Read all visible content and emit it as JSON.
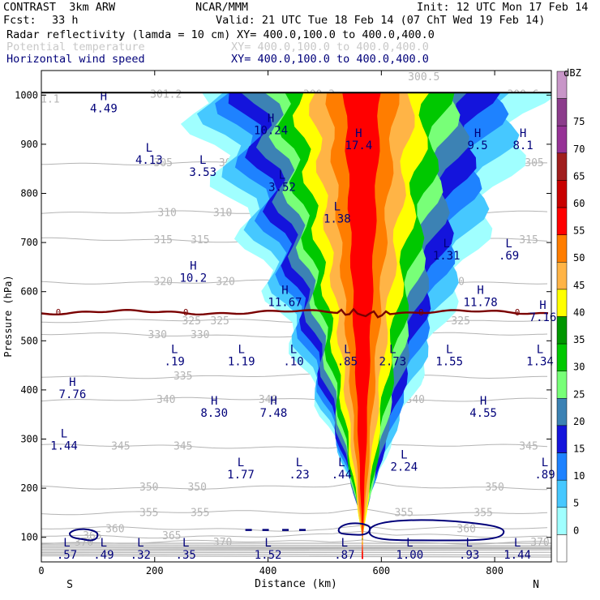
{
  "header": {
    "model": "CONTRAST  3km ARW",
    "org": "NCAR/MMM",
    "init": "Init: 12 UTC Mon 17 Feb 14",
    "fcst_label": "Fcst:",
    "fcst_value": "33 h",
    "valid": "Valid: 21 UTC Tue 18 Feb 14 (07 ChT Wed 19 Feb 14)",
    "field1": "Radar reflectivity (lamda = 10 cm)",
    "field1_xy": "XY= 400.0,100.0 to 400.0,400.0",
    "field2": "Potential temperature",
    "field2_xy": "XY= 400.0,100.0 to 400.0,400.0",
    "field3": "Horizontal wind speed",
    "field3_xy": "XY= 400.0,100.0 to 400.0,400.0"
  },
  "colors": {
    "theta": "#b4b4b4",
    "wind": "#00007a",
    "zero": "#7a0000",
    "axis": "#000000"
  },
  "chart_data": {
    "type": "cross-section",
    "xlabel": "Distance (km)",
    "ylabel": "Pressure (hPa)",
    "xlim": [
      0,
      900
    ],
    "ylim": [
      1050,
      50
    ],
    "xticks": [
      0,
      200,
      400,
      600,
      800
    ],
    "yticks": [
      100,
      200,
      300,
      400,
      500,
      600,
      700,
      800,
      900,
      1000
    ],
    "direction_left": "S",
    "direction_right": "N",
    "colorbar": {
      "unit": "dBZ",
      "levels": [
        0,
        5,
        10,
        15,
        20,
        25,
        30,
        35,
        40,
        45,
        50,
        55,
        60,
        65,
        70,
        75
      ],
      "colors": [
        "#ffffff",
        "#a0ffff",
        "#46c8ff",
        "#1e82ff",
        "#1414dc",
        "#3c82b4",
        "#78ff78",
        "#00c800",
        "#009600",
        "#ffff00",
        "#ffb446",
        "#ff7d00",
        "#ff0000",
        "#c80000",
        "#a01e1e",
        "#963296",
        "#8c3c8c",
        "#c896c8"
      ]
    },
    "theta_contours": [
      {
        "value": 305,
        "p": 862,
        "labels": [
          {
            "x": 215,
            "t": "305"
          },
          {
            "x": 330,
            "t": "305"
          },
          {
            "x": 665,
            "t": "305"
          },
          {
            "x": 870,
            "t": "305"
          }
        ]
      },
      {
        "value": 310,
        "p": 760,
        "labels": [
          {
            "x": 222,
            "t": "310"
          },
          {
            "x": 320,
            "t": "310"
          },
          {
            "x": 665,
            "t": "310"
          }
        ]
      },
      {
        "value": 315,
        "p": 705,
        "labels": [
          {
            "x": 215,
            "t": "315"
          },
          {
            "x": 280,
            "t": "315"
          },
          {
            "x": 650,
            "t": "315"
          },
          {
            "x": 860,
            "t": "315"
          }
        ]
      },
      {
        "value": 320,
        "p": 620,
        "labels": [
          {
            "x": 215,
            "t": "320"
          },
          {
            "x": 325,
            "t": "320"
          },
          {
            "x": 675,
            "t": "320"
          },
          {
            "x": 730,
            "t": "320"
          }
        ]
      },
      {
        "value": 325,
        "p": 540,
        "labels": [
          {
            "x": 265,
            "t": "325"
          },
          {
            "x": 315,
            "t": "325"
          },
          {
            "x": 740,
            "t": "325"
          }
        ]
      },
      {
        "value": 330,
        "p": 512,
        "labels": [
          {
            "x": 205,
            "t": "330"
          },
          {
            "x": 280,
            "t": "330"
          },
          {
            "x": 660,
            "t": "330"
          }
        ]
      },
      {
        "value": 335,
        "p": 428,
        "labels": [
          {
            "x": 250,
            "t": "335"
          },
          {
            "x": 660,
            "t": "335"
          }
        ]
      },
      {
        "value": 340,
        "p": 380,
        "labels": [
          {
            "x": 220,
            "t": "340"
          },
          {
            "x": 400,
            "t": "340"
          },
          {
            "x": 660,
            "t": "340"
          }
        ]
      },
      {
        "value": 345,
        "p": 285,
        "labels": [
          {
            "x": 140,
            "t": "345"
          },
          {
            "x": 250,
            "t": "345"
          },
          {
            "x": 860,
            "t": "345"
          }
        ]
      },
      {
        "value": 350,
        "p": 202,
        "labels": [
          {
            "x": 190,
            "t": "350"
          },
          {
            "x": 275,
            "t": "350"
          },
          {
            "x": 800,
            "t": "350"
          }
        ]
      },
      {
        "value": 355,
        "p": 150,
        "labels": [
          {
            "x": 190,
            "t": "355"
          },
          {
            "x": 280,
            "t": "355"
          },
          {
            "x": 640,
            "t": "355"
          },
          {
            "x": 780,
            "t": "355"
          }
        ]
      },
      {
        "value": 360,
        "p": 117,
        "labels": [
          {
            "x": 130,
            "t": "360"
          },
          {
            "x": 750,
            "t": "360"
          }
        ]
      },
      {
        "value": 365,
        "p": 103,
        "labels": [
          {
            "x": 90,
            "t": "365"
          },
          {
            "x": 230,
            "t": "365"
          }
        ]
      },
      {
        "value": 370,
        "p": 90,
        "labels": [
          {
            "x": 75,
            "t": "370"
          },
          {
            "x": 320,
            "t": "370"
          },
          {
            "x": 880,
            "t": "370"
          }
        ]
      }
    ],
    "theta_surface_labels": [
      {
        "x": 10,
        "p": 985,
        "t": "01.1"
      },
      {
        "x": 220,
        "p": 995,
        "t": "301.2"
      },
      {
        "x": 490,
        "p": 995,
        "t": "300.3"
      },
      {
        "x": 675,
        "p": 1030,
        "t": "300.5"
      },
      {
        "x": 850,
        "p": 995,
        "t": "300.6"
      }
    ],
    "zero_line": {
      "p": 558,
      "labels": [
        {
          "x": 30,
          "t": "0"
        },
        {
          "x": 255,
          "t": "0"
        },
        {
          "x": 670,
          "t": "0"
        },
        {
          "x": 840,
          "t": "0"
        }
      ]
    },
    "wind_extrema": [
      {
        "x": 45,
        "p": 81,
        "k": "L",
        "v": ".57"
      },
      {
        "x": 110,
        "p": 81,
        "k": "L",
        "v": ".49"
      },
      {
        "x": 175,
        "p": 81,
        "k": "L",
        "v": ".32"
      },
      {
        "x": 255,
        "p": 81,
        "k": "L",
        "v": ".35"
      },
      {
        "x": 400,
        "p": 81,
        "k": "L",
        "v": "1.52"
      },
      {
        "x": 535,
        "p": 81,
        "k": "L",
        "v": ".87"
      },
      {
        "x": 650,
        "p": 81,
        "k": "L",
        "v": "1.00"
      },
      {
        "x": 755,
        "p": 81,
        "k": "L",
        "v": ".93"
      },
      {
        "x": 840,
        "p": 81,
        "k": "L",
        "v": "1.44"
      },
      {
        "x": 352,
        "p": 245,
        "k": "L",
        "v": "1.77"
      },
      {
        "x": 455,
        "p": 245,
        "k": "L",
        "v": ".23"
      },
      {
        "x": 530,
        "p": 245,
        "k": "L",
        "v": ".44"
      },
      {
        "x": 640,
        "p": 260,
        "k": "L",
        "v": "2.24"
      },
      {
        "x": 895,
        "p": 245,
        "k": "L",
        "v": ".89"
      },
      {
        "x": 40,
        "p": 303,
        "k": "L",
        "v": "1.44"
      },
      {
        "x": 305,
        "p": 370,
        "k": "H",
        "v": "8.30"
      },
      {
        "x": 410,
        "p": 370,
        "k": "H",
        "v": "7.48"
      },
      {
        "x": 780,
        "p": 370,
        "k": "H",
        "v": "4.55"
      },
      {
        "x": 55,
        "p": 408,
        "k": "H",
        "v": "7.76"
      },
      {
        "x": 235,
        "p": 475,
        "k": "L",
        "v": ".19"
      },
      {
        "x": 353,
        "p": 475,
        "k": "L",
        "v": "1.19"
      },
      {
        "x": 445,
        "p": 475,
        "k": "L",
        "v": ".10"
      },
      {
        "x": 540,
        "p": 475,
        "k": "L",
        "v": ".85"
      },
      {
        "x": 620,
        "p": 475,
        "k": "L",
        "v": "2.73"
      },
      {
        "x": 720,
        "p": 475,
        "k": "L",
        "v": "1.55"
      },
      {
        "x": 880,
        "p": 475,
        "k": "L",
        "v": "1.34"
      },
      {
        "x": 885,
        "p": 565,
        "k": "H",
        "v": "7.16"
      },
      {
        "x": 430,
        "p": 595,
        "k": "H",
        "v": "11.67"
      },
      {
        "x": 775,
        "p": 595,
        "k": "H",
        "v": "11.78"
      },
      {
        "x": 268,
        "p": 645,
        "k": "H",
        "v": "10.2"
      },
      {
        "x": 715,
        "p": 690,
        "k": "L",
        "v": "1.31"
      },
      {
        "x": 825,
        "p": 690,
        "k": "L",
        "v": ".69"
      },
      {
        "x": 522,
        "p": 765,
        "k": "L",
        "v": "1.38"
      },
      {
        "x": 425,
        "p": 830,
        "k": "L",
        "v": "3.52"
      },
      {
        "x": 285,
        "p": 860,
        "k": "L",
        "v": "3.53"
      },
      {
        "x": 190,
        "p": 885,
        "k": "L",
        "v": "4.13"
      },
      {
        "x": 770,
        "p": 915,
        "k": "H",
        "v": "9.5"
      },
      {
        "x": 850,
        "p": 915,
        "k": "H",
        "v": "8.1"
      },
      {
        "x": 560,
        "p": 915,
        "k": "H",
        "v": "17.4"
      },
      {
        "x": 405,
        "p": 945,
        "k": "H",
        "v": "10.24"
      },
      {
        "x": 110,
        "p": 990,
        "k": "H",
        "v": "4.49"
      }
    ],
    "reflectivity_core": {
      "x_center": 568,
      "p_top": 155,
      "p_bottom": 1005,
      "max_dbz": 50
    }
  }
}
